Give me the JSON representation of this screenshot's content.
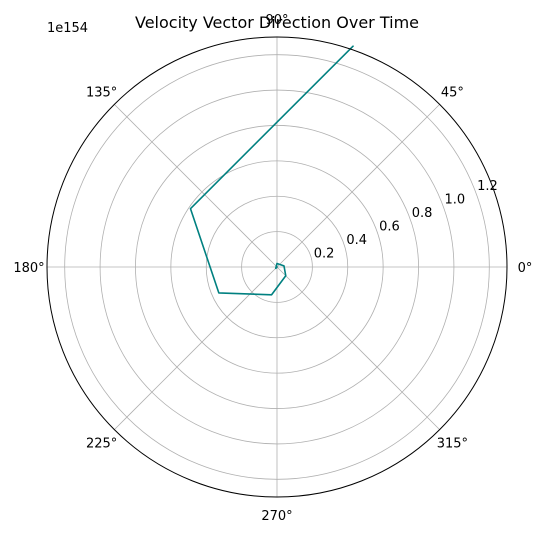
{
  "chart_data": {
    "type": "line",
    "projection": "polar",
    "title": "Velocity Vector Direction Over Time",
    "radial_offset_label": "1e154",
    "radial_scale": 1e+154,
    "radial_axis": {
      "rlim": [
        0,
        1.3
      ],
      "ticks": [
        0.2,
        0.4,
        0.6,
        0.8,
        1.0,
        1.2
      ],
      "tick_labels": [
        "0.2",
        "0.4",
        "0.6",
        "0.8",
        "1.0",
        "1.2"
      ]
    },
    "angular_axis": {
      "ticks_deg": [
        0,
        45,
        90,
        135,
        180,
        225,
        270,
        315
      ],
      "tick_labels": [
        "0°",
        "45°",
        "90°",
        "135°",
        "180°",
        "225°",
        "270°",
        "315°"
      ]
    },
    "grid": true,
    "series": [
      {
        "color": "#008080",
        "points": [
          {
            "theta_deg": 0,
            "r": 0.0
          },
          {
            "theta_deg": 225,
            "r": 0.01
          },
          {
            "theta_deg": 90,
            "r": 0.02
          },
          {
            "theta_deg": 9,
            "r": 0.04
          },
          {
            "theta_deg": 315,
            "r": 0.07
          },
          {
            "theta_deg": 259,
            "r": 0.16
          },
          {
            "theta_deg": 204,
            "r": 0.36
          },
          {
            "theta_deg": 146,
            "r": 0.59
          },
          {
            "theta_deg": 71,
            "r": 1.32
          }
        ]
      }
    ]
  }
}
